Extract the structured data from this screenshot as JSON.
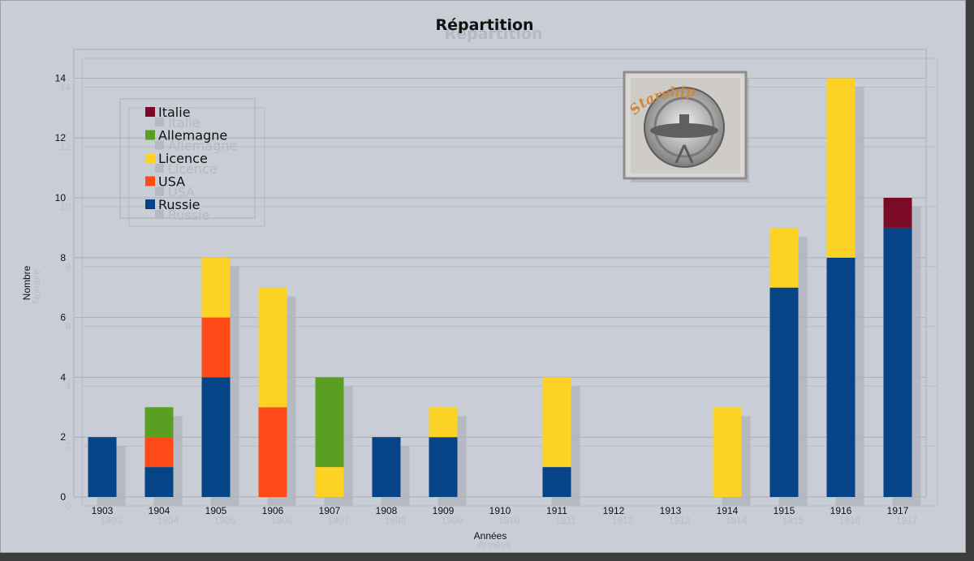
{
  "colors": {
    "Italie": "#7a0a26",
    "Allemagne": "#5a9e22",
    "Licence": "#fcd225",
    "USA": "#fd4a17",
    "Russie": "#064487"
  },
  "logo": {
    "text": "Starship"
  },
  "chart_data": {
    "type": "bar",
    "stacked": true,
    "title": "Répartition",
    "xlabel": "Années",
    "ylabel": "Nombre",
    "ylim": [
      0,
      15
    ],
    "yticks": [
      0,
      2,
      4,
      6,
      8,
      10,
      12,
      14
    ],
    "grid": true,
    "legend_position": "top-left",
    "categories": [
      "1903",
      "1904",
      "1905",
      "1906",
      "1907",
      "1908",
      "1909",
      "1910",
      "1911",
      "1912",
      "1913",
      "1914",
      "1915",
      "1916",
      "1917"
    ],
    "series": [
      {
        "name": "Russie",
        "values": [
          2,
          1,
          4,
          0,
          0,
          2,
          2,
          0,
          1,
          0,
          0,
          0,
          7,
          8,
          9
        ]
      },
      {
        "name": "USA",
        "values": [
          0,
          1,
          2,
          3,
          0,
          0,
          0,
          0,
          0,
          0,
          0,
          0,
          0,
          0,
          0
        ]
      },
      {
        "name": "Licence",
        "values": [
          0,
          0,
          2,
          4,
          1,
          0,
          1,
          0,
          3,
          0,
          0,
          3,
          2,
          6,
          0
        ]
      },
      {
        "name": "Allemagne",
        "values": [
          0,
          1,
          0,
          0,
          3,
          0,
          0,
          0,
          0,
          0,
          0,
          0,
          0,
          0,
          0
        ]
      },
      {
        "name": "Italie",
        "values": [
          0,
          0,
          0,
          0,
          0,
          0,
          0,
          0,
          0,
          0,
          0,
          0,
          0,
          0,
          1
        ]
      }
    ],
    "legend_order": [
      "Italie",
      "Allemagne",
      "Licence",
      "USA",
      "Russie"
    ]
  }
}
